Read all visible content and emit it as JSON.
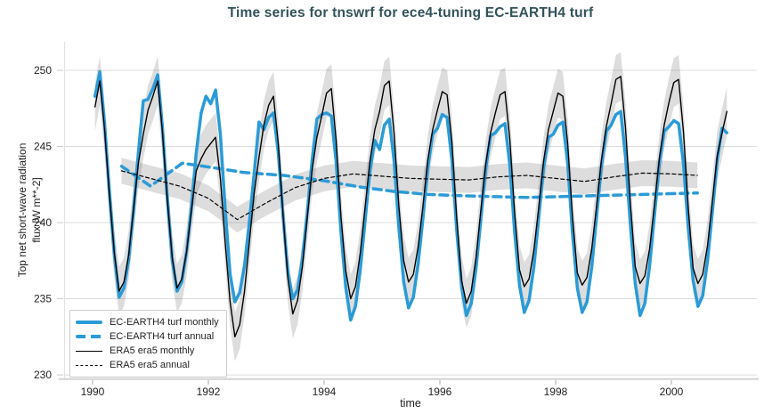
{
  "header": {
    "title": "Time series for tnswrf for ece4-tuning EC-EARTH4 turf"
  },
  "colors": {
    "accent_blue": "#2b9bd7",
    "line_black": "#000000",
    "title_text": "#33535a",
    "grid": "#dcdcdc",
    "band": "rgba(100,100,100,0.22)"
  },
  "legend": {
    "items": [
      {
        "label": "EC-EARTH4 turf monthly",
        "style": "blue-solid-thick"
      },
      {
        "label": "EC-EARTH4 turf annual",
        "style": "blue-dashed-thick"
      },
      {
        "label": "ERA5 era5 monthly",
        "style": "black-solid-thin"
      },
      {
        "label": "ERA5 era5 annual",
        "style": "black-dashed-thin"
      }
    ]
  },
  "chart_data": {
    "type": "line",
    "title": "Time series for tnswrf for ece4-tuning EC-EARTH4 turf",
    "xlabel": "time",
    "ylabel": "Top net short-wave radiation\nflux [W m**-2]",
    "xlim": [
      1989.508,
      2001.477
    ],
    "ylim": [
      229.77,
      251.87
    ],
    "x_ticks": [
      1990,
      1992,
      1994,
      1996,
      1998,
      2000
    ],
    "y_ticks": [
      230,
      235,
      240,
      245,
      250
    ],
    "grid": "horizontal",
    "legend_position": "lower left",
    "band_color": "rgba(100,100,100,0.22)",
    "series": [
      {
        "name": "EC-EARTH4 turf monthly",
        "color": "#2b9bd7",
        "width": 3.5,
        "dash": "solid",
        "cadence": "monthly",
        "start_year": 1990,
        "values": [
          248.3,
          249.9,
          246.5,
          242.0,
          237.9,
          235.1,
          235.7,
          237.6,
          240.8,
          244.6,
          248.0,
          248.1,
          248.8,
          249.7,
          246.2,
          241.6,
          237.6,
          235.5,
          236.1,
          238.1,
          241.0,
          244.6,
          247.2,
          248.3,
          247.8,
          248.7,
          245.8,
          240.9,
          236.6,
          234.8,
          235.4,
          237.2,
          240.0,
          243.2,
          246.6,
          246.1,
          246.9,
          247.2,
          244.6,
          240.4,
          236.7,
          235.0,
          235.6,
          237.6,
          240.6,
          244.0,
          246.8,
          247.1,
          247.2,
          247.0,
          244.0,
          239.4,
          235.7,
          233.6,
          234.5,
          236.9,
          240.1,
          243.4,
          245.4,
          244.8,
          246.4,
          246.8,
          244.1,
          239.7,
          236.1,
          234.4,
          235.1,
          237.3,
          240.3,
          243.6,
          245.8,
          246.2,
          247.1,
          246.9,
          244.1,
          239.5,
          235.8,
          233.9,
          234.7,
          237.0,
          240.2,
          243.5,
          245.7,
          245.9,
          246.3,
          246.5,
          243.8,
          239.4,
          235.9,
          234.1,
          234.9,
          237.1,
          240.3,
          243.6,
          245.6,
          245.8,
          246.4,
          246.6,
          243.9,
          239.3,
          235.7,
          234.1,
          234.8,
          237.1,
          240.4,
          243.7,
          246.0,
          246.4,
          247.1,
          247.3,
          244.3,
          239.8,
          236.0,
          233.9,
          234.7,
          237.2,
          240.5,
          243.9,
          246.0,
          246.3,
          246.7,
          246.5,
          243.9,
          239.6,
          236.2,
          234.5,
          235.2,
          237.5,
          240.7,
          244.1,
          246.2,
          245.9
        ]
      },
      {
        "name": "EC-EARTH4 turf annual",
        "color": "#2b9bd7",
        "width": 3.5,
        "dash": "9 6",
        "cadence": "annual",
        "points": [
          [
            1990.5,
            243.7
          ],
          [
            1991.0,
            242.4
          ],
          [
            1991.55,
            243.9
          ],
          [
            1992.1,
            243.6
          ],
          [
            1992.6,
            243.3
          ],
          [
            1993.3,
            243.1
          ],
          [
            1994.0,
            242.75
          ],
          [
            1994.6,
            242.35
          ],
          [
            1995.2,
            242.05
          ],
          [
            1995.8,
            241.85
          ],
          [
            1996.5,
            241.75
          ],
          [
            1997.5,
            241.65
          ],
          [
            1998.5,
            241.75
          ],
          [
            1999.5,
            241.85
          ],
          [
            2000.45,
            241.95
          ]
        ]
      },
      {
        "name": "ERA5 era5 monthly",
        "color": "#000000",
        "width": 1.4,
        "dash": "solid",
        "cadence": "monthly",
        "start_year": 1990,
        "band_halfwidth": 1.6,
        "values": [
          247.6,
          249.3,
          246.1,
          241.8,
          238.0,
          235.5,
          236.1,
          237.9,
          240.9,
          243.9,
          245.8,
          247.4,
          248.3,
          249.3,
          245.9,
          241.5,
          237.7,
          235.7,
          236.3,
          238.1,
          240.8,
          243.4,
          244.2,
          244.8,
          245.2,
          245.6,
          242.9,
          238.7,
          234.8,
          232.5,
          233.3,
          235.5,
          238.7,
          241.9,
          244.3,
          246.4,
          247.7,
          248.3,
          245.2,
          240.5,
          236.3,
          234.0,
          234.9,
          237.1,
          240.3,
          243.4,
          245.6,
          247.0,
          248.5,
          248.8,
          245.4,
          240.4,
          236.8,
          235.0,
          235.8,
          238.0,
          241.0,
          244.0,
          246.1,
          247.3,
          249.0,
          249.3,
          245.9,
          241.1,
          237.5,
          236.1,
          236.6,
          238.4,
          241.1,
          244.1,
          246.1,
          247.4,
          248.6,
          248.4,
          245.3,
          240.3,
          236.2,
          234.7,
          235.5,
          237.7,
          240.8,
          243.8,
          245.9,
          247.2,
          248.4,
          248.6,
          245.5,
          240.7,
          236.9,
          235.8,
          236.3,
          238.2,
          241.0,
          244.0,
          246.1,
          247.3,
          248.5,
          248.3,
          245.2,
          240.4,
          236.7,
          235.9,
          236.4,
          238.3,
          241.1,
          244.1,
          246.3,
          247.8,
          249.4,
          249.6,
          246.2,
          241.2,
          237.1,
          236.0,
          236.5,
          238.3,
          241.2,
          244.2,
          246.4,
          247.9,
          249.2,
          249.4,
          246.0,
          240.9,
          237.0,
          236.0,
          236.6,
          238.5,
          241.4,
          244.4,
          245.9,
          247.3
        ]
      },
      {
        "name": "ERA5 era5 annual",
        "color": "#000000",
        "width": 1.2,
        "dash": "4 3",
        "cadence": "annual",
        "band_halfwidth": 0.85,
        "points": [
          [
            1990.5,
            243.4
          ],
          [
            1991.0,
            242.9
          ],
          [
            1991.5,
            242.4
          ],
          [
            1992.0,
            241.6
          ],
          [
            1992.5,
            240.2
          ],
          [
            1993.0,
            241.3
          ],
          [
            1993.5,
            242.3
          ],
          [
            1994.0,
            242.9
          ],
          [
            1994.5,
            243.2
          ],
          [
            1995.0,
            243.05
          ],
          [
            1995.5,
            242.9
          ],
          [
            1996.0,
            242.85
          ],
          [
            1996.5,
            242.8
          ],
          [
            1997.0,
            243.0
          ],
          [
            1997.5,
            243.1
          ],
          [
            1998.0,
            242.9
          ],
          [
            1998.5,
            242.7
          ],
          [
            1999.0,
            243.0
          ],
          [
            1999.5,
            243.25
          ],
          [
            2000.0,
            243.2
          ],
          [
            2000.45,
            243.1
          ]
        ]
      }
    ]
  }
}
